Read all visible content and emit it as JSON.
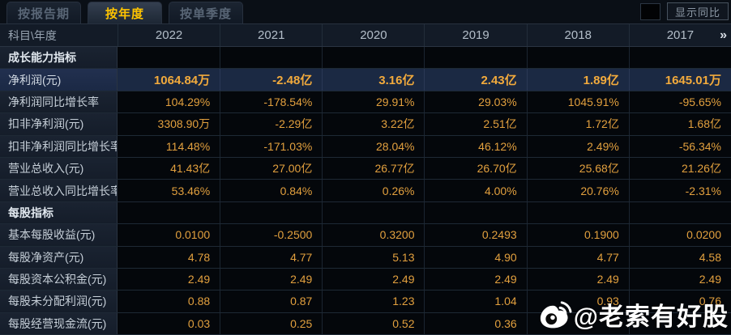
{
  "tabs": [
    {
      "label": "按报告期",
      "active": false
    },
    {
      "label": "按年度",
      "active": true
    },
    {
      "label": "按单季度",
      "active": false
    }
  ],
  "controls": {
    "show_yoy_label": "显示同比",
    "checkbox_checked": false
  },
  "colors": {
    "accent_gold": "#ffc400",
    "value_orange": "#e2a03e",
    "highlight_row_bg": "#1b2943",
    "label_cell_bg": "#18202e",
    "data_cell_bg": "#04070b",
    "page_bg": "#070b11"
  },
  "watermark": {
    "icon": "weibo-icon",
    "text": "@老索有好股"
  },
  "table": {
    "corner_label": "科目\\年度",
    "years": [
      "2022",
      "2021",
      "2020",
      "2019",
      "2018",
      "2017"
    ],
    "more_label": "»",
    "rows": [
      {
        "label": "成长能力指标",
        "type": "section",
        "values": [
          "",
          "",
          "",
          "",
          "",
          ""
        ]
      },
      {
        "label": "净利润(元)",
        "type": "highlight",
        "values": [
          "1064.84万",
          "-2.48亿",
          "3.16亿",
          "2.43亿",
          "1.89亿",
          "1645.01万"
        ]
      },
      {
        "label": "净利润同比增长率",
        "type": "data",
        "values": [
          "104.29%",
          "-178.54%",
          "29.91%",
          "29.03%",
          "1045.91%",
          "-95.65%"
        ]
      },
      {
        "label": "扣非净利润(元)",
        "type": "data",
        "values": [
          "3308.90万",
          "-2.29亿",
          "3.22亿",
          "2.51亿",
          "1.72亿",
          "1.68亿"
        ]
      },
      {
        "label": "扣非净利润同比增长率",
        "type": "data",
        "values": [
          "114.48%",
          "-171.03%",
          "28.04%",
          "46.12%",
          "2.49%",
          "-56.34%"
        ]
      },
      {
        "label": "营业总收入(元)",
        "type": "data",
        "values": [
          "41.43亿",
          "27.00亿",
          "26.77亿",
          "26.70亿",
          "25.68亿",
          "21.26亿"
        ]
      },
      {
        "label": "营业总收入同比增长率",
        "type": "data",
        "values": [
          "53.46%",
          "0.84%",
          "0.26%",
          "4.00%",
          "20.76%",
          "-2.31%"
        ]
      },
      {
        "label": "每股指标",
        "type": "section",
        "values": [
          "",
          "",
          "",
          "",
          "",
          ""
        ]
      },
      {
        "label": "基本每股收益(元)",
        "type": "data",
        "values": [
          "0.0100",
          "-0.2500",
          "0.3200",
          "0.2493",
          "0.1900",
          "0.0200"
        ]
      },
      {
        "label": "每股净资产(元)",
        "type": "data",
        "values": [
          "4.78",
          "4.77",
          "5.13",
          "4.90",
          "4.77",
          "4.58"
        ]
      },
      {
        "label": "每股资本公积金(元)",
        "type": "data",
        "values": [
          "2.49",
          "2.49",
          "2.49",
          "2.49",
          "2.49",
          "2.49"
        ]
      },
      {
        "label": "每股未分配利润(元)",
        "type": "data",
        "values": [
          "0.88",
          "0.87",
          "1.23",
          "1.04",
          "0.93",
          "0.76"
        ]
      },
      {
        "label": "每股经营现金流(元)",
        "type": "data",
        "values": [
          "0.03",
          "0.25",
          "0.52",
          "0.36",
          "",
          ""
        ]
      }
    ]
  }
}
